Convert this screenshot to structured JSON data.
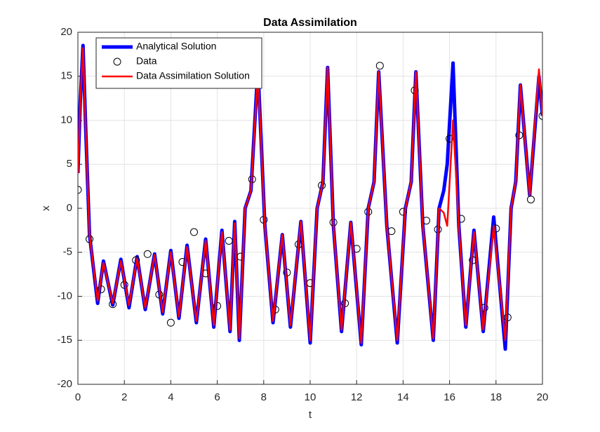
{
  "chart_data": {
    "type": "line",
    "title": "Data Assimilation",
    "xlabel": "t",
    "ylabel": "x",
    "x": [
      0,
      0.1,
      0.22,
      0.35,
      0.5,
      0.85,
      1.1,
      1.5,
      1.85,
      2.2,
      2.55,
      2.9,
      3.3,
      3.65,
      4.0,
      4.35,
      4.7,
      5.1,
      5.5,
      5.85,
      6.2,
      6.55,
      6.75,
      6.95,
      7.2,
      7.45,
      7.75,
      8.05,
      8.4,
      8.8,
      9.15,
      9.6,
      10.0,
      10.3,
      10.55,
      10.75,
      11.0,
      11.35,
      11.75,
      12.2,
      12.5,
      12.75,
      12.95,
      13.3,
      13.75,
      14.1,
      14.35,
      14.55,
      14.85,
      15.3,
      15.55,
      15.75,
      15.9,
      16.15,
      16.4,
      16.7,
      17.05,
      17.45,
      17.9,
      18.4,
      18.65,
      18.85,
      19.05,
      19.45,
      19.85,
      20
    ],
    "series": [
      {
        "name": "Analytical Solution",
        "color": "#0000ff",
        "values": [
          4,
          12,
          18.5,
          8,
          -3,
          -10.8,
          -6,
          -11,
          -5.8,
          -11.3,
          -5.5,
          -11.5,
          -5.2,
          -12,
          -4.8,
          -12.5,
          -4.2,
          -13,
          -3.5,
          -13.5,
          -2.5,
          -14,
          -1.5,
          -15,
          0,
          2,
          16,
          -2,
          -13,
          -3,
          -13.5,
          -1.5,
          -15.3,
          0,
          3,
          16,
          -2,
          -14,
          -1.6,
          -15.5,
          0,
          3,
          15.5,
          -2,
          -15.3,
          0,
          3,
          15.5,
          -2,
          -15,
          0,
          2,
          5,
          16.5,
          -2,
          -13.5,
          -2.5,
          -14,
          -1,
          -16,
          0,
          3,
          14,
          1.5,
          15,
          10.5
        ]
      },
      {
        "name": "Data",
        "color": "#000000",
        "marker": "circle",
        "x": [
          0,
          0.5,
          1,
          1.5,
          2,
          2.5,
          3,
          3.5,
          4,
          4.5,
          5,
          5.5,
          6,
          6.5,
          7,
          7.5,
          8,
          8.5,
          9,
          9.5,
          10,
          10.5,
          11,
          11.5,
          12,
          12.5,
          13,
          13.5,
          14,
          14.5,
          15,
          15.5,
          16,
          16.5,
          17,
          17.5,
          18,
          18.5,
          19,
          19.5,
          20
        ],
        "values": [
          2.1,
          -3.5,
          -9.2,
          -10.9,
          -8.7,
          -5.9,
          -5.2,
          -9.8,
          -13,
          -6.1,
          -2.7,
          -7.4,
          -11.1,
          -3.7,
          -5.5,
          3.3,
          -1.3,
          -11.5,
          -7.3,
          -4.1,
          -8.5,
          2.6,
          -1.6,
          -10.8,
          -4.6,
          -0.4,
          16.2,
          -2.6,
          -0.4,
          13.4,
          -1.4,
          -2.4,
          7.9,
          -1.2,
          -5.9,
          -11.3,
          -2.3,
          -12.4,
          8.3,
          1,
          10.5
        ]
      },
      {
        "name": "Data Assimilation Solution",
        "color": "#ff0000",
        "values": [
          4,
          12,
          18.2,
          8,
          -3,
          -10.5,
          -6.2,
          -10.8,
          -6,
          -11,
          -5.7,
          -11.3,
          -5.3,
          -11.8,
          -5,
          -12.3,
          -4.4,
          -12.8,
          -3.7,
          -13.3,
          -2.7,
          -13.8,
          -1.7,
          -14.8,
          0,
          2,
          15.5,
          -2,
          -12.8,
          -3,
          -13.3,
          -1.5,
          -15,
          0,
          3,
          16,
          -2,
          -13.8,
          -1.6,
          -15.3,
          0,
          3,
          15.5,
          -2,
          -15,
          0,
          3,
          15.5,
          -2,
          -14.8,
          0,
          -0.5,
          -2,
          10,
          -2,
          -13.3,
          -2.7,
          -13.8,
          -2,
          -15,
          0,
          3,
          14,
          1.5,
          15.8,
          10.5
        ]
      }
    ],
    "xlim": [
      0,
      20
    ],
    "ylim": [
      -20,
      20
    ],
    "xticks": [
      0,
      2,
      4,
      6,
      8,
      10,
      12,
      14,
      16,
      18,
      20
    ],
    "yticks": [
      -20,
      -15,
      -10,
      -5,
      0,
      5,
      10,
      15,
      20
    ],
    "grid": true,
    "legend": "top-left"
  }
}
